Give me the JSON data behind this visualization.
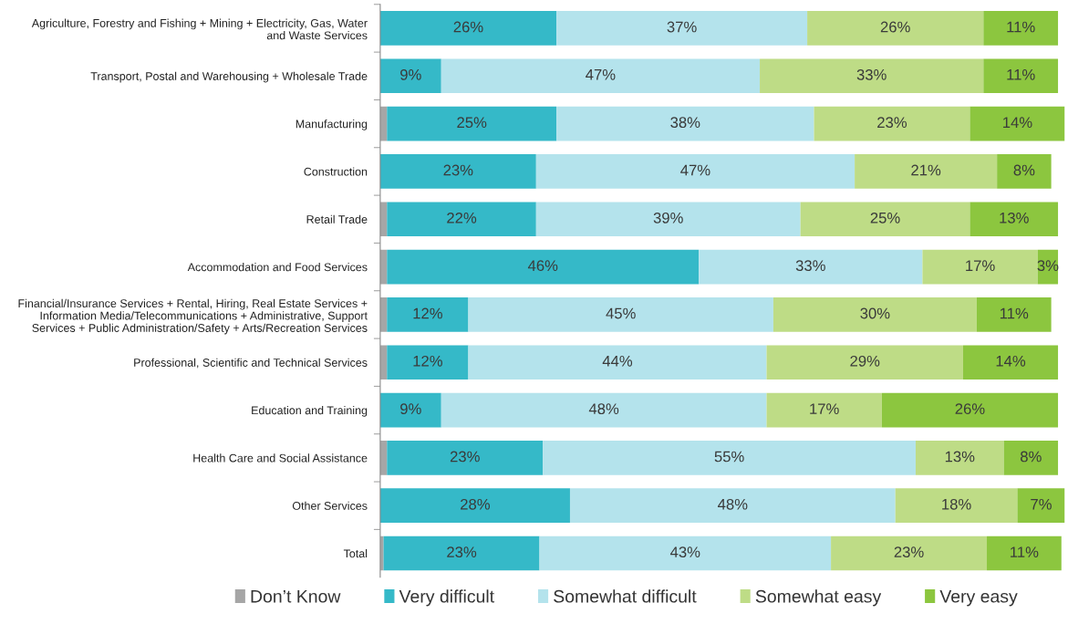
{
  "chart_data": {
    "type": "bar",
    "orientation": "horizontal",
    "stacked": true,
    "legend": "bottom",
    "grid": false,
    "tick_labels": "y",
    "categories": [
      "Agriculture, Forestry and Fishing + Mining + Electricity, Gas, Water\nand Waste Services",
      "Transport, Postal and Warehousing + Wholesale Trade",
      "Manufacturing",
      "Construction",
      "Retail Trade",
      "Accommodation and Food Services",
      "Financial/Insurance Services + Rental, Hiring, Real Estate Services +\nInformation Media/Telecommunications + Administrative, Support\nServices + Public Administration/Safety + Arts/Recreation Services",
      "Professional, Scientific and Technical Services",
      "Education and Training",
      "Health Care and Social Assistance",
      "Other Services",
      "Total"
    ],
    "series": [
      {
        "name": "Don’t Know",
        "color": "#a6a6a6",
        "values": [
          0,
          0,
          1,
          0,
          1,
          1,
          1,
          1,
          0,
          1,
          0,
          0.5
        ],
        "value_labels": [
          null,
          null,
          null,
          null,
          null,
          null,
          null,
          null,
          null,
          null,
          null,
          null
        ]
      },
      {
        "name": "Very difficult",
        "color": "#35b9c8",
        "values": [
          26,
          9,
          25,
          23,
          22,
          46,
          12,
          12,
          9,
          23,
          28,
          23
        ],
        "value_labels": [
          "26%",
          "9%",
          "25%",
          "23%",
          "22%",
          "46%",
          "12%",
          "12%",
          "9%",
          "23%",
          "28%",
          "23%"
        ]
      },
      {
        "name": "Somewhat difficult",
        "color": "#b4e3ec",
        "values": [
          37,
          47,
          38,
          47,
          39,
          33,
          45,
          44,
          48,
          55,
          48,
          43
        ],
        "value_labels": [
          "37%",
          "47%",
          "38%",
          "47%",
          "39%",
          "33%",
          "45%",
          "44%",
          "48%",
          "55%",
          "48%",
          "43%"
        ]
      },
      {
        "name": "Somewhat easy",
        "color": "#bedc86",
        "values": [
          26,
          33,
          23,
          21,
          25,
          17,
          30,
          29,
          17,
          13,
          18,
          23
        ],
        "value_labels": [
          "26%",
          "33%",
          "23%",
          "21%",
          "25%",
          "17%",
          "30%",
          "29%",
          "17%",
          "13%",
          "18%",
          "23%"
        ]
      },
      {
        "name": "Very easy",
        "color": "#8cc63f",
        "values": [
          11,
          11,
          14,
          8,
          13,
          3,
          11,
          14,
          26,
          8,
          7,
          11
        ],
        "value_labels": [
          "11%",
          "11%",
          "14%",
          "8%",
          "13%",
          "3%",
          "11%",
          "14%",
          "26%",
          "8%",
          "7%",
          "11%"
        ]
      }
    ]
  }
}
